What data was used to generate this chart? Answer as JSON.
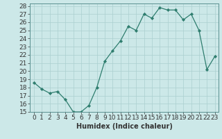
{
  "title": "",
  "xlabel": "Humidex (Indice chaleur)",
  "ylabel": "",
  "x": [
    0,
    1,
    2,
    3,
    4,
    5,
    6,
    7,
    8,
    9,
    10,
    11,
    12,
    13,
    14,
    15,
    16,
    17,
    18,
    19,
    20,
    21,
    22,
    23
  ],
  "y": [
    18.6,
    17.8,
    17.3,
    17.5,
    16.5,
    15.0,
    15.0,
    15.8,
    18.0,
    21.2,
    22.5,
    23.7,
    25.5,
    25.0,
    27.0,
    26.5,
    27.8,
    27.5,
    27.5,
    26.3,
    27.0,
    25.0,
    20.2,
    21.8
  ],
  "ylim": [
    15,
    28
  ],
  "yticks": [
    15,
    16,
    17,
    18,
    19,
    20,
    21,
    22,
    23,
    24,
    25,
    26,
    27,
    28
  ],
  "xticks": [
    0,
    1,
    2,
    3,
    4,
    5,
    6,
    7,
    8,
    9,
    10,
    11,
    12,
    13,
    14,
    15,
    16,
    17,
    18,
    19,
    20,
    21,
    22,
    23
  ],
  "line_color": "#2e7d6e",
  "marker_color": "#2e7d6e",
  "bg_color": "#cce8e8",
  "grid_color": "#aacfcf",
  "font_color": "#333333",
  "label_fontsize": 7,
  "tick_fontsize": 6.5
}
